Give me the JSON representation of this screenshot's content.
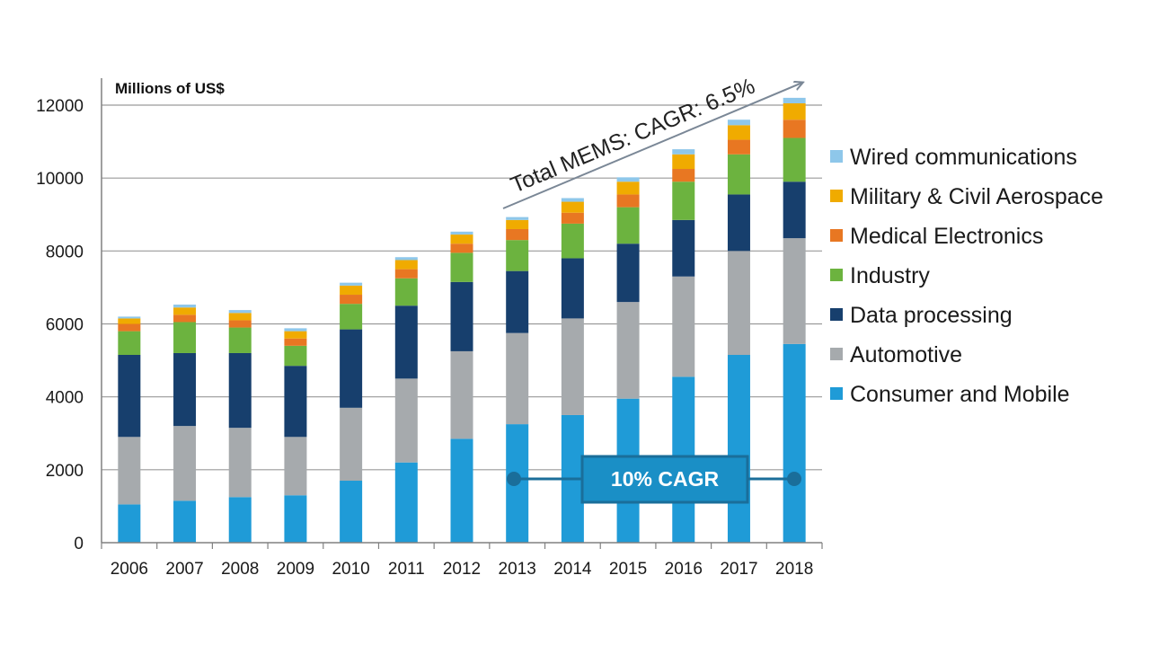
{
  "chart_data": {
    "type": "bar",
    "stacked": true,
    "unit_label": "Millions of US$",
    "categories": [
      "2006",
      "2007",
      "2008",
      "2009",
      "2010",
      "2011",
      "2012",
      "2013",
      "2014",
      "2015",
      "2016",
      "2017",
      "2018"
    ],
    "ylim": [
      0,
      12000
    ],
    "yticks": [
      0,
      2000,
      4000,
      6000,
      8000,
      10000,
      12000
    ],
    "grid": true,
    "legend_position": "right",
    "series": [
      {
        "name": "Consumer and Mobile",
        "color": "#1f9bd7",
        "values": [
          1050,
          1150,
          1250,
          1300,
          1700,
          2200,
          2850,
          3250,
          3500,
          3950,
          4550,
          5150,
          5450
        ]
      },
      {
        "name": "Automotive",
        "color": "#a6aaad",
        "values": [
          1850,
          2050,
          1900,
          1600,
          2000,
          2300,
          2400,
          2500,
          2650,
          2650,
          2750,
          2850,
          2900
        ]
      },
      {
        "name": "Data processing",
        "color": "#173f6d",
        "values": [
          2250,
          2000,
          2050,
          1950,
          2150,
          2000,
          1900,
          1700,
          1650,
          1600,
          1550,
          1550,
          1550
        ]
      },
      {
        "name": "Industry",
        "color": "#6cb33f",
        "values": [
          650,
          850,
          700,
          550,
          700,
          750,
          800,
          850,
          950,
          1000,
          1050,
          1100,
          1200
        ]
      },
      {
        "name": "Medical Electronics",
        "color": "#e87722",
        "values": [
          200,
          200,
          200,
          200,
          250,
          250,
          250,
          300,
          300,
          350,
          350,
          400,
          500
        ]
      },
      {
        "name": "Military & Civil Aerospace",
        "color": "#f0ab00",
        "values": [
          150,
          200,
          200,
          200,
          250,
          250,
          250,
          250,
          300,
          350,
          400,
          400,
          450
        ]
      },
      {
        "name": "Wired communications",
        "color": "#8ec7ea",
        "values": [
          50,
          80,
          80,
          80,
          80,
          80,
          80,
          80,
          100,
          120,
          140,
          150,
          150
        ]
      }
    ],
    "annotations": {
      "trend_label": "Total MEMS: CAGR: 6.5%",
      "cagr_badge": "10% CAGR"
    }
  }
}
